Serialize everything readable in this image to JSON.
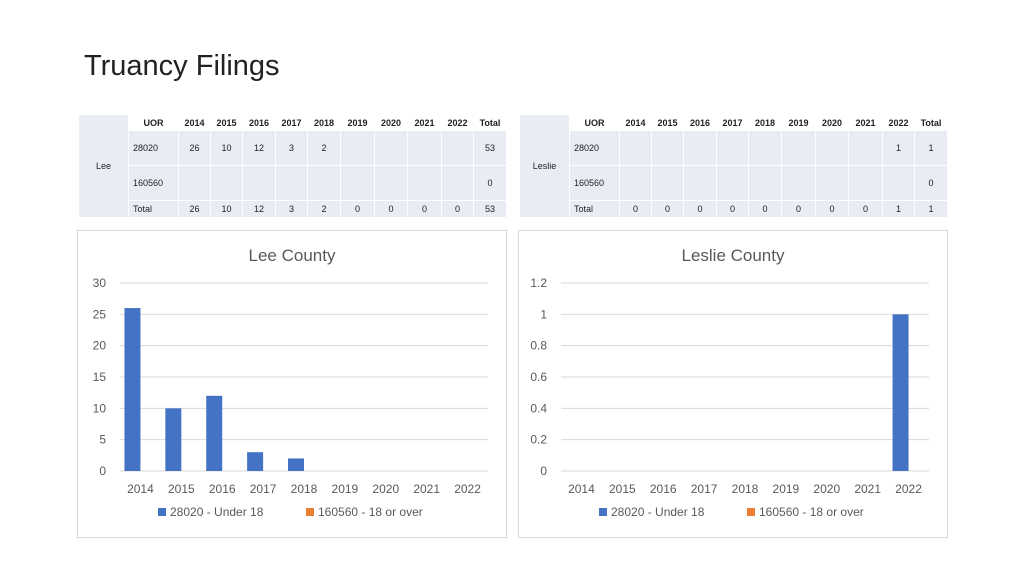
{
  "slide": {
    "title": "Truancy Filings"
  },
  "tables": [
    {
      "county": "Lee",
      "headers": [
        "UOR",
        "2014",
        "2015",
        "2016",
        "2017",
        "2018",
        "2019",
        "2020",
        "2021",
        "2022",
        "Total"
      ],
      "rows": [
        [
          "28020",
          "26",
          "10",
          "12",
          "3",
          "2",
          "",
          "",
          "",
          "",
          "53"
        ],
        [
          "160560",
          "",
          "",
          "",
          "",
          "",
          "",
          "",
          "",
          "",
          "0"
        ]
      ],
      "total_row": [
        "Total",
        "26",
        "10",
        "12",
        "3",
        "2",
        "0",
        "0",
        "0",
        "0",
        "53"
      ]
    },
    {
      "county": "Leslie",
      "headers": [
        "UOR",
        "2014",
        "2015",
        "2016",
        "2017",
        "2018",
        "2019",
        "2020",
        "2021",
        "2022",
        "Total"
      ],
      "rows": [
        [
          "28020",
          "",
          "",
          "",
          "",
          "",
          "",
          "",
          "",
          "1",
          "1"
        ],
        [
          "160560",
          "",
          "",
          "",
          "",
          "",
          "",
          "",
          "",
          "",
          "0"
        ]
      ],
      "total_row": [
        "Total",
        "0",
        "0",
        "0",
        "0",
        "0",
        "0",
        "0",
        "0",
        "1",
        "1"
      ]
    }
  ],
  "chart_data": [
    {
      "type": "bar",
      "title": "Lee County",
      "categories": [
        "2014",
        "2015",
        "2016",
        "2017",
        "2018",
        "2019",
        "2020",
        "2021",
        "2022"
      ],
      "series": [
        {
          "name": "28020 - Under 18",
          "color": "#4472c4",
          "values": [
            26,
            10,
            12,
            3,
            2,
            0,
            0,
            0,
            0
          ]
        },
        {
          "name": "160560 - 18 or over",
          "color": "#ed7d31",
          "values": [
            0,
            0,
            0,
            0,
            0,
            0,
            0,
            0,
            0
          ]
        }
      ],
      "ylim": [
        0,
        30
      ],
      "yticks": [
        0,
        5,
        10,
        15,
        20,
        25,
        30
      ],
      "ytick_labels": [
        "0",
        "5",
        "10",
        "15",
        "20",
        "25",
        "30"
      ],
      "grid": true,
      "legend": "bottom"
    },
    {
      "type": "bar",
      "title": "Leslie County",
      "categories": [
        "2014",
        "2015",
        "2016",
        "2017",
        "2018",
        "2019",
        "2020",
        "2021",
        "2022"
      ],
      "series": [
        {
          "name": "28020 - Under 18",
          "color": "#4472c4",
          "values": [
            0,
            0,
            0,
            0,
            0,
            0,
            0,
            0,
            1
          ]
        },
        {
          "name": "160560 - 18 or over",
          "color": "#ed7d31",
          "values": [
            0,
            0,
            0,
            0,
            0,
            0,
            0,
            0,
            0
          ]
        }
      ],
      "ylim": [
        0,
        1.2
      ],
      "yticks": [
        0,
        0.2,
        0.4,
        0.6,
        0.8,
        1,
        1.2
      ],
      "ytick_labels": [
        "0",
        "0.2",
        "0.4",
        "0.6",
        "0.8",
        "1",
        "1.2"
      ],
      "grid": true,
      "legend": "bottom"
    }
  ]
}
